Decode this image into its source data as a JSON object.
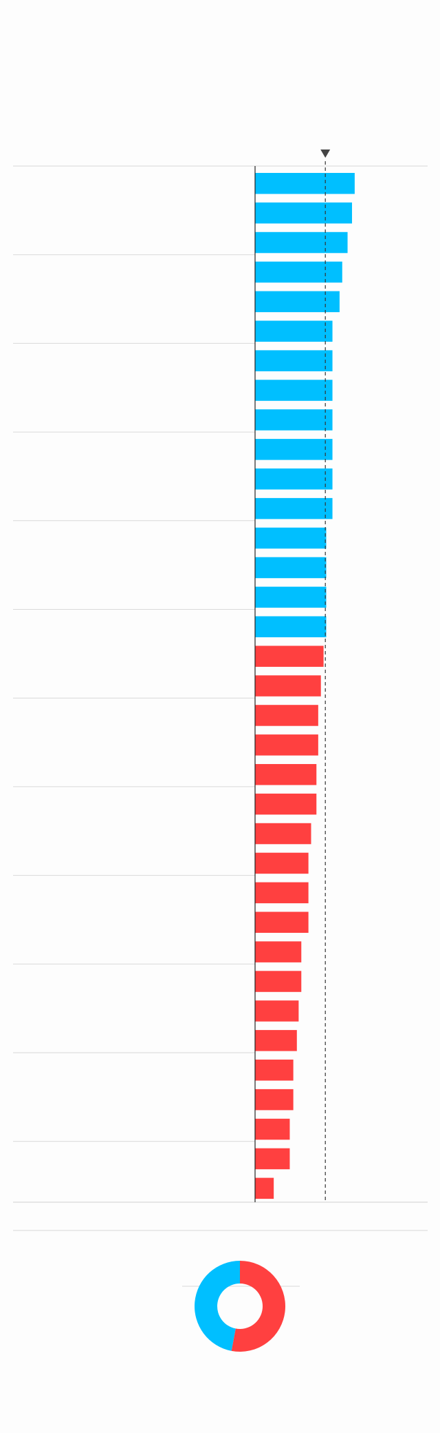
{
  "chart_data": [
    {
      "type": "bar",
      "orientation": "horizontal",
      "xlim": [
        0,
        194
      ],
      "reference_line": 79,
      "series": [
        {
          "color": "#00bfff",
          "values": [
            112,
            109,
            104,
            98,
            95,
            87,
            87,
            87,
            87,
            87,
            87,
            87,
            80,
            80,
            80,
            80
          ]
        },
        {
          "color": "#ff4040",
          "values": [
            77,
            74,
            71,
            71,
            69,
            69,
            63,
            60,
            60,
            60,
            52,
            52,
            49,
            47,
            43,
            43,
            39,
            39,
            21
          ]
        }
      ]
    },
    {
      "type": "pie",
      "donut": true,
      "values": [
        53,
        47
      ],
      "colors": [
        "#ff4040",
        "#00bfff"
      ]
    }
  ]
}
